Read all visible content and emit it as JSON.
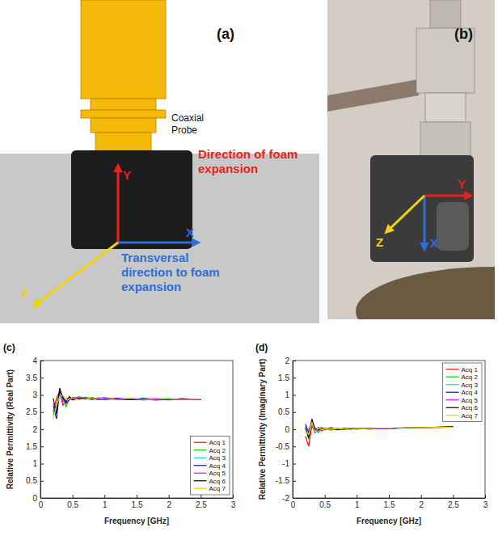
{
  "figure": {
    "panel_a": {
      "label": "(a)",
      "probe": "Coaxial Probe",
      "axes": [
        {
          "text": "Y",
          "color": "#e8231c",
          "caption": "Direction of foam expansion"
        },
        {
          "text": "X",
          "color": "#2d6fd6",
          "caption": "Transversal direction to foam expansion"
        },
        {
          "text": "Z",
          "color": "#f2d20a"
        }
      ]
    },
    "panel_b": {
      "label": "(b)",
      "axes": [
        {
          "text": "Y",
          "color": "#e8231c"
        },
        {
          "text": "X",
          "color": "#2d6fd6"
        },
        {
          "text": "Z",
          "color": "#f2d20a"
        }
      ]
    }
  },
  "chart_data": [
    {
      "type": "line",
      "annotations": [
        "(c)"
      ],
      "x_label": "Frequency [GHz]",
      "y_label": "Relative Permittivity (Real Part)",
      "x": [
        0.2,
        0.25,
        0.3,
        0.35,
        0.4,
        0.45,
        0.5,
        0.6,
        0.7,
        0.8,
        0.9,
        1.0,
        1.2,
        1.4,
        1.6,
        1.8,
        2.0,
        2.2,
        2.5
      ],
      "xlim": [
        0,
        3
      ],
      "xticks": [
        0,
        0.5,
        1,
        1.5,
        2,
        2.5,
        3
      ],
      "ylim": [
        0,
        4
      ],
      "yticks": [
        0,
        0.5,
        1,
        1.5,
        2,
        2.5,
        3,
        3.5,
        4
      ],
      "grid": false,
      "legend": "southeast",
      "series": [
        {
          "name": "Acq 1",
          "color": "#ff0000",
          "values": [
            2.5,
            2.9,
            3.1,
            2.7,
            2.85,
            2.9,
            2.85,
            2.9,
            2.92,
            2.88,
            2.9,
            2.87,
            2.9,
            2.86,
            2.88,
            2.85,
            2.87,
            2.88,
            2.86
          ]
        },
        {
          "name": "Acq 2",
          "color": "#00cc00",
          "values": [
            2.4,
            2.8,
            3.0,
            2.9,
            2.65,
            2.9,
            2.88,
            2.95,
            2.9,
            2.86,
            2.92,
            2.88,
            2.87,
            2.9,
            2.85,
            2.88,
            2.9,
            2.86,
            2.87
          ]
        },
        {
          "name": "Acq 3",
          "color": "#00e0e0",
          "values": [
            2.6,
            2.5,
            3.05,
            2.85,
            2.8,
            2.92,
            2.9,
            2.88,
            2.94,
            2.9,
            2.86,
            2.9,
            2.88,
            2.87,
            2.9,
            2.87,
            2.85,
            2.88,
            2.87
          ]
        },
        {
          "name": "Acq 4",
          "color": "#0000ff",
          "values": [
            2.7,
            2.3,
            3.1,
            2.95,
            2.75,
            2.85,
            2.92,
            2.9,
            2.87,
            2.93,
            2.88,
            2.86,
            2.9,
            2.88,
            2.86,
            2.9,
            2.87,
            2.86,
            2.88
          ]
        },
        {
          "name": "Acq 5",
          "color": "#ff00ff",
          "values": [
            2.75,
            2.6,
            3.0,
            2.8,
            2.9,
            2.88,
            2.86,
            2.92,
            2.9,
            2.87,
            2.9,
            2.92,
            2.86,
            2.89,
            2.88,
            2.86,
            2.88,
            2.87,
            2.86
          ]
        },
        {
          "name": "Acq 6",
          "color": "#000000",
          "values": [
            2.9,
            2.45,
            3.2,
            2.9,
            2.8,
            2.95,
            2.87,
            2.89,
            2.91,
            2.9,
            2.87,
            2.89,
            2.88,
            2.86,
            2.9,
            2.88,
            2.86,
            2.89,
            2.87
          ]
        },
        {
          "name": "Acq 7",
          "color": "#e6d800",
          "values": [
            2.3,
            2.7,
            2.95,
            3.0,
            2.85,
            2.87,
            2.91,
            2.86,
            2.89,
            2.92,
            2.89,
            2.88,
            2.87,
            2.9,
            2.87,
            2.89,
            2.88,
            2.87,
            2.88
          ]
        }
      ]
    },
    {
      "type": "line",
      "annotations": [
        "(d)"
      ],
      "x_label": "Frequency [GHz]",
      "y_label": "Relative Permittivity (Imaginary Part)",
      "x": [
        0.2,
        0.25,
        0.3,
        0.35,
        0.4,
        0.45,
        0.5,
        0.6,
        0.7,
        0.8,
        0.9,
        1.0,
        1.2,
        1.4,
        1.6,
        1.8,
        2.0,
        2.2,
        2.5
      ],
      "xlim": [
        0,
        3
      ],
      "xticks": [
        0,
        0.5,
        1,
        1.5,
        2,
        2.5,
        3
      ],
      "ylim": [
        -2,
        2
      ],
      "yticks": [
        -2,
        -1.5,
        -1,
        -0.5,
        0,
        0.5,
        1,
        1.5,
        2
      ],
      "grid": false,
      "legend": "northeast",
      "series": [
        {
          "name": "Acq 1",
          "color": "#ff0000",
          "values": [
            -0.2,
            -0.5,
            0.1,
            -0.1,
            0.05,
            -0.05,
            0.0,
            0.05,
            -0.02,
            0.02,
            0.0,
            0.03,
            0.01,
            0.02,
            0.03,
            0.04,
            0.05,
            0.06,
            0.07
          ]
        },
        {
          "name": "Acq 2",
          "color": "#00cc00",
          "values": [
            0.1,
            -0.3,
            0.15,
            0.0,
            -0.1,
            0.05,
            0.02,
            -0.03,
            0.03,
            0.0,
            0.02,
            0.01,
            0.02,
            0.03,
            0.02,
            0.04,
            0.05,
            0.05,
            0.07
          ]
        },
        {
          "name": "Acq 3",
          "color": "#00e0e0",
          "values": [
            0.0,
            -0.2,
            0.2,
            -0.05,
            0.0,
            0.03,
            -0.03,
            0.02,
            0.0,
            0.03,
            0.01,
            0.02,
            0.03,
            0.02,
            0.04,
            0.03,
            0.05,
            0.06,
            0.06
          ]
        },
        {
          "name": "Acq 4",
          "color": "#0000ff",
          "values": [
            0.15,
            -0.1,
            0.25,
            -0.1,
            0.05,
            0.0,
            0.03,
            0.0,
            0.02,
            -0.01,
            0.03,
            0.02,
            0.01,
            0.03,
            0.03,
            0.05,
            0.04,
            0.06,
            0.07
          ]
        },
        {
          "name": "Acq 5",
          "color": "#ff00ff",
          "values": [
            -0.1,
            0.0,
            0.1,
            0.05,
            -0.05,
            0.02,
            0.0,
            0.03,
            0.01,
            0.02,
            0.0,
            0.03,
            0.02,
            0.02,
            0.04,
            0.04,
            0.05,
            0.05,
            0.06
          ]
        },
        {
          "name": "Acq 6",
          "color": "#000000",
          "values": [
            0.05,
            -0.25,
            0.3,
            0.0,
            -0.02,
            0.04,
            0.01,
            0.02,
            -0.01,
            0.02,
            0.02,
            0.01,
            0.03,
            0.03,
            0.03,
            0.04,
            0.06,
            0.06,
            0.07
          ]
        },
        {
          "name": "Acq 7",
          "color": "#e6d800",
          "values": [
            -0.05,
            -0.15,
            0.2,
            -0.08,
            0.03,
            0.0,
            0.02,
            0.01,
            0.02,
            0.01,
            0.03,
            0.02,
            0.02,
            0.04,
            0.03,
            0.05,
            0.05,
            0.06,
            0.06
          ]
        }
      ]
    }
  ]
}
